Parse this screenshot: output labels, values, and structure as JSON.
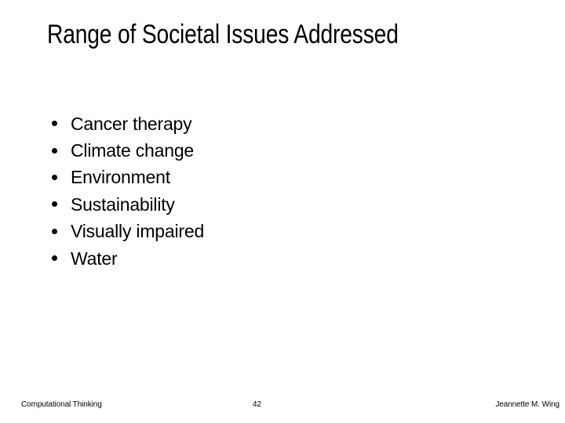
{
  "slide": {
    "title": "Range of Societal Issues Addressed",
    "bullets": [
      "Cancer therapy",
      "Climate change",
      "Environment",
      "Sustainability",
      "Visually impaired",
      "Water"
    ],
    "footer": {
      "left": "Computational Thinking",
      "page_number": "42",
      "right": "Jeannette M. Wing"
    },
    "colors": {
      "background": "#ffffff",
      "text": "#000000"
    }
  }
}
